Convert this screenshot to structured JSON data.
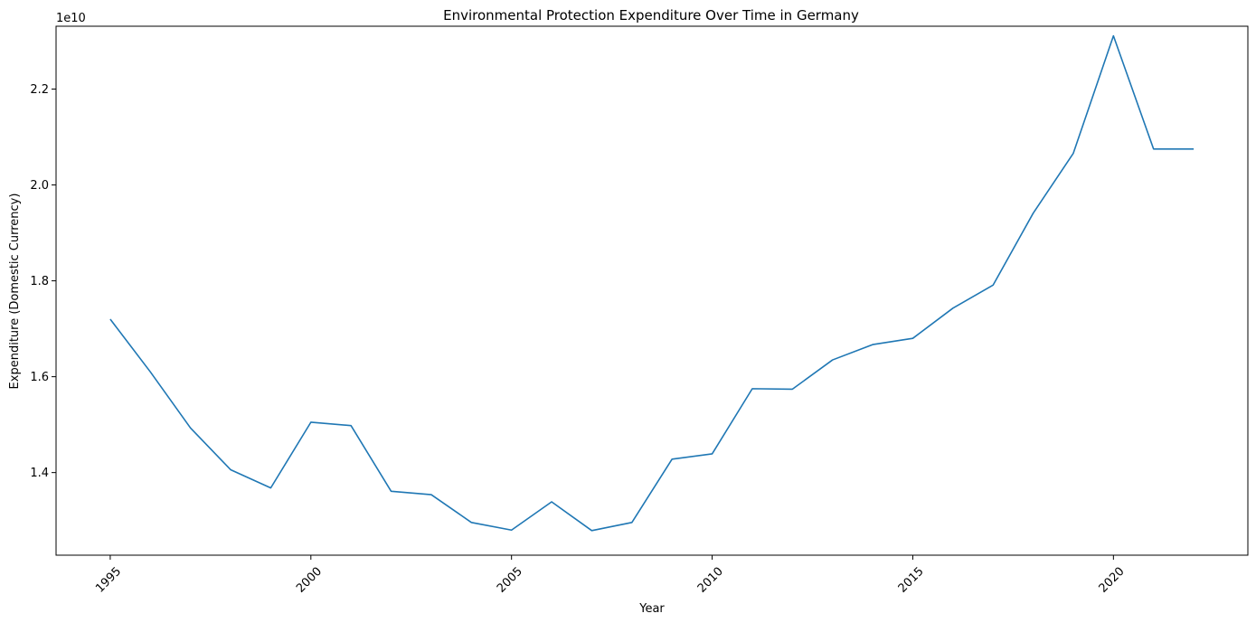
{
  "chart_data": {
    "type": "line",
    "title": "Environmental Protection Expenditure Over Time in Germany",
    "xlabel": "Year",
    "ylabel": "Expenditure (Domestic Currency)",
    "y_offset_label": "1e10",
    "xlim": [
      1993.65,
      2023.35
    ],
    "ylim": [
      1.2277,
      2.3311
    ],
    "y_scale_note": "values in units of 1e10",
    "x_ticks": [
      1995,
      2000,
      2005,
      2010,
      2015,
      2020
    ],
    "x_tick_labels": [
      "1995",
      "2000",
      "2005",
      "2010",
      "2015",
      "2020"
    ],
    "y_ticks": [
      1.4,
      1.6,
      1.8,
      2.0,
      2.2
    ],
    "y_tick_labels": [
      "1.4",
      "1.6",
      "1.8",
      "2.0",
      "2.2"
    ],
    "grid": false,
    "series": [
      {
        "color": "#1f77b4",
        "x": [
          1995,
          1996,
          1997,
          1998,
          1999,
          2000,
          2001,
          2002,
          2003,
          2004,
          2005,
          2006,
          2007,
          2008,
          2009,
          2010,
          2011,
          2012,
          2013,
          2014,
          2015,
          2016,
          2017,
          2018,
          2019,
          2020,
          2021,
          2022
        ],
        "values": [
          1.72,
          1.61,
          1.493,
          1.406,
          1.368,
          1.505,
          1.498,
          1.361,
          1.354,
          1.296,
          1.28,
          1.339,
          1.279,
          1.296,
          1.428,
          1.439,
          1.575,
          1.574,
          1.635,
          1.667,
          1.68,
          1.743,
          1.791,
          1.941,
          2.066,
          2.311,
          2.075,
          2.075
        ]
      }
    ]
  }
}
